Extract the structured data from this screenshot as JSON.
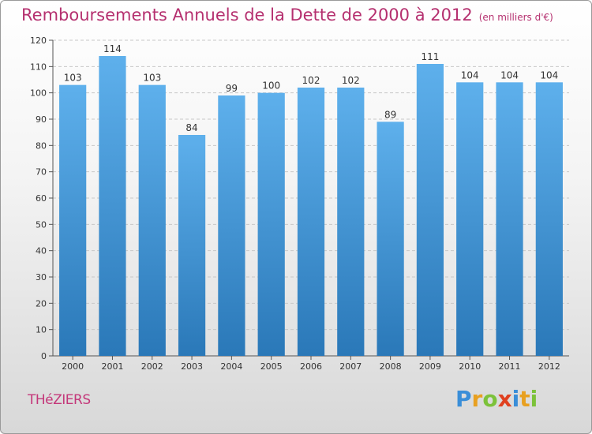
{
  "title": "Remboursements Annuels de la Dette de 2000 à 2012",
  "subtitle": "(en milliers d'€)",
  "commune": "THéZIERS",
  "logo": {
    "letters": [
      "P",
      "r",
      "o",
      "x",
      "i",
      "t",
      "i"
    ],
    "colors": [
      "#3a8ed8",
      "#e8a020",
      "#7cc23a",
      "#e0401f",
      "#3a8ed8",
      "#e8a020",
      "#7cc23a"
    ]
  },
  "colors": {
    "bar_top": "#5eb0ec",
    "bar_bottom": "#2a78b8",
    "grid": "#c8c8c8",
    "title": "#b5306f"
  },
  "chart_data": {
    "type": "bar",
    "title": "Remboursements Annuels de la Dette de 2000 à 2012",
    "subtitle": "(en milliers d'€)",
    "categories": [
      "2000",
      "2001",
      "2002",
      "2003",
      "2004",
      "2005",
      "2006",
      "2007",
      "2008",
      "2009",
      "2010",
      "2011",
      "2012"
    ],
    "values": [
      103,
      114,
      103,
      84,
      99,
      100,
      102,
      102,
      89,
      111,
      104,
      104,
      104
    ],
    "ylim": [
      0,
      120
    ],
    "yticks": [
      0,
      10,
      20,
      30,
      40,
      50,
      60,
      70,
      80,
      90,
      100,
      110,
      120
    ],
    "grid": true,
    "data_labels": true
  }
}
